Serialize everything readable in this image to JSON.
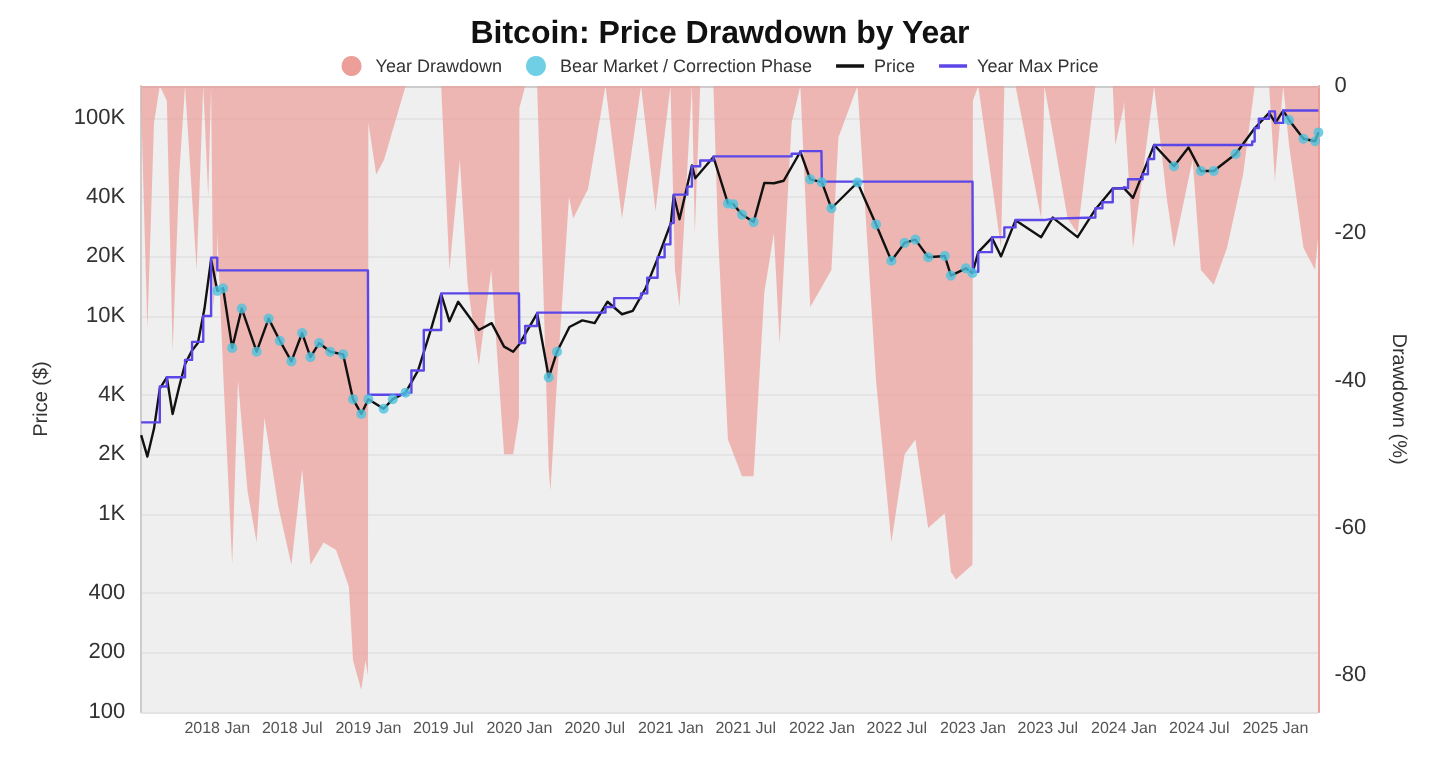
{
  "chart_data": {
    "type": "line",
    "title": "Bitcoin: Price Drawdown by Year",
    "ylabel": "Price ($)",
    "y2label": "Drawdown (%)",
    "log": "y",
    "grid": "y",
    "legend": "top",
    "line_style": "solid",
    "xlim": [
      "2017-07-01",
      "2025-04-15"
    ],
    "xticks": [
      {
        "value": "2018-01",
        "label": "2018 Jan"
      },
      {
        "value": "2018-07",
        "label": "2018 Jul"
      },
      {
        "value": "2019-01",
        "label": "2019 Jan"
      },
      {
        "value": "2019-07",
        "label": "2019 Jul"
      },
      {
        "value": "2020-01",
        "label": "2020 Jan"
      },
      {
        "value": "2020-07",
        "label": "2020 Jul"
      },
      {
        "value": "2021-01",
        "label": "2021 Jan"
      },
      {
        "value": "2021-07",
        "label": "2021 Jul"
      },
      {
        "value": "2022-01",
        "label": "2022 Jan"
      },
      {
        "value": "2022-07",
        "label": "2022 Jul"
      },
      {
        "value": "2023-01",
        "label": "2023 Jan"
      },
      {
        "value": "2023-07",
        "label": "2023 Jul"
      },
      {
        "value": "2024-01",
        "label": "2024 Jan"
      },
      {
        "value": "2024-07",
        "label": "2024 Jul"
      },
      {
        "value": "2025-01",
        "label": "2025 Jan"
      }
    ],
    "ylim": [
      100,
      145000
    ],
    "yticks": [
      100,
      200,
      400,
      {
        "value": 1000,
        "label": "1K"
      },
      {
        "value": 2000,
        "label": "2K"
      },
      {
        "value": 4000,
        "label": "4K"
      },
      {
        "value": 10000,
        "label": "10K"
      },
      {
        "value": 20000,
        "label": "20K"
      },
      {
        "value": 40000,
        "label": "40K"
      },
      {
        "value": 100000,
        "label": "100K"
      }
    ],
    "y2lim": [
      -85,
      0
    ],
    "y2ticks": [
      0,
      -20,
      -40,
      -60,
      -80
    ],
    "series": [
      {
        "name": "Year Drawdown",
        "type": "area",
        "axis": "y2",
        "color": "#ec9e98",
        "x": [
          "2017-07-01",
          "2017-07-16",
          "2017-08-01",
          "2017-08-15",
          "2017-09-01",
          "2017-09-15",
          "2017-10-01",
          "2017-10-15",
          "2017-11-12",
          "2017-11-28",
          "2017-12-10",
          "2017-12-17",
          "2017-12-22",
          "2017-12-31",
          "2018-01-01",
          "2018-01-16",
          "2018-02-06",
          "2018-02-20",
          "2018-03-15",
          "2018-04-06",
          "2018-04-25",
          "2018-05-28",
          "2018-06-29",
          "2018-07-25",
          "2018-08-14",
          "2018-09-15",
          "2018-10-15",
          "2018-11-15",
          "2018-11-25",
          "2018-12-15",
          "2018-12-25",
          "2018-12-31",
          "2019-01-01",
          "2019-01-20",
          "2019-02-08",
          "2019-04-01",
          "2019-05-15",
          "2019-06-26",
          "2019-07-16",
          "2019-08-10",
          "2019-08-29",
          "2019-09-25",
          "2019-10-25",
          "2019-11-25",
          "2019-12-17",
          "2019-12-31",
          "2020-01-01",
          "2020-01-15",
          "2020-02-13",
          "2020-03-12",
          "2020-03-16",
          "2020-04-01",
          "2020-04-30",
          "2020-05-10",
          "2020-06-15",
          "2020-07-27",
          "2020-09-05",
          "2020-10-21",
          "2020-11-25",
          "2020-12-31",
          "2021-01-01",
          "2021-01-11",
          "2021-01-22",
          "2021-02-21",
          "2021-02-28",
          "2021-03-13",
          "2021-04-14",
          "2021-04-25",
          "2021-05-19",
          "2021-06-22",
          "2021-07-20",
          "2021-08-15",
          "2021-09-07",
          "2021-09-21",
          "2021-10-20",
          "2021-11-10",
          "2021-12-04",
          "2022-01-24",
          "2022-02-10",
          "2022-03-28",
          "2022-05-12",
          "2022-06-18",
          "2022-07-20",
          "2022-08-15",
          "2022-09-15",
          "2022-10-25",
          "2022-11-09",
          "2022-11-21",
          "2022-12-31",
          "2023-01-01",
          "2023-01-14",
          "2023-03-10",
          "2023-03-18",
          "2023-04-14",
          "2023-06-15",
          "2023-06-23",
          "2023-08-18",
          "2023-09-11",
          "2023-10-24",
          "2023-12-05",
          "2023-12-11",
          "2023-12-31",
          "2024-01-01",
          "2024-01-23",
          "2024-03-14",
          "2024-04-13",
          "2024-05-01",
          "2024-06-15",
          "2024-07-05",
          "2024-08-05",
          "2024-09-06",
          "2024-10-15",
          "2024-11-12",
          "2024-12-17",
          "2024-12-31",
          "2025-01-01",
          "2025-01-20",
          "2025-02-03",
          "2025-03-10",
          "2025-04-07",
          "2025-04-15"
        ],
        "values": [
          -3,
          -33,
          -5,
          0,
          -2,
          -36,
          -12,
          0,
          -25,
          0,
          -15,
          0,
          -30,
          -25,
          -20,
          -40,
          -65,
          -40,
          -55,
          -62,
          -45,
          -57,
          -65,
          -52,
          -65,
          -62,
          -63,
          -68,
          -78,
          -82,
          -78,
          -80,
          -5,
          -12,
          -10,
          0,
          0,
          0,
          -25,
          -10,
          -27,
          -38,
          -25,
          -50,
          -50,
          -45,
          -3,
          0,
          0,
          -52,
          -55,
          -40,
          -15,
          -18,
          -14,
          0,
          -18,
          0,
          -17,
          0,
          -2,
          -25,
          -30,
          0,
          -20,
          0,
          0,
          -20,
          -48,
          -53,
          -53,
          -28,
          -20,
          -35,
          -5,
          0,
          -30,
          -25,
          -7,
          0,
          -40,
          -62,
          -50,
          -48,
          -60,
          -58,
          -66,
          -67,
          -65,
          -2,
          0,
          -22,
          0,
          0,
          -18,
          0,
          -18,
          -20,
          0,
          0,
          -8,
          -3,
          -2,
          -22,
          0,
          -15,
          -22,
          -10,
          -25,
          -27,
          -22,
          -12,
          0,
          0,
          -13,
          -12,
          0,
          -8,
          -22,
          -25,
          -20
        ]
      },
      {
        "name": "Bear Market / Correction Phase",
        "type": "scatter",
        "color": "#4cc3dd",
        "x": [
          "2018-01-01",
          "2018-01-15",
          "2018-02-06",
          "2018-03-01",
          "2018-04-06",
          "2018-05-05",
          "2018-06-01",
          "2018-06-29",
          "2018-07-25",
          "2018-08-14",
          "2018-09-04",
          "2018-10-01",
          "2018-11-01",
          "2018-11-25",
          "2018-12-15",
          "2019-01-01",
          "2019-02-07",
          "2019-03-01",
          "2019-04-01",
          "2020-03-12",
          "2020-04-01",
          "2021-05-19",
          "2021-06-01",
          "2021-06-22",
          "2021-07-20",
          "2021-12-04",
          "2022-01-01",
          "2022-01-24",
          "2022-03-28",
          "2022-05-12",
          "2022-06-18",
          "2022-07-20",
          "2022-08-15",
          "2022-09-15",
          "2022-10-25",
          "2022-11-09",
          "2022-12-15",
          "2022-12-31",
          "2024-05-01",
          "2024-07-05",
          "2024-08-05",
          "2024-09-27",
          "2025-02-03",
          "2025-03-10",
          "2025-04-07",
          "2025-04-15"
        ],
        "values": [
          13400,
          13800,
          6900,
          10900,
          6600,
          9700,
          7500,
          5900,
          8200,
          6200,
          7300,
          6600,
          6400,
          3800,
          3200,
          3800,
          3400,
          3800,
          4100,
          4900,
          6600,
          37000,
          36700,
          32500,
          29800,
          49000,
          47400,
          35000,
          47200,
          29000,
          19000,
          23400,
          24300,
          19800,
          20100,
          16000,
          17400,
          16500,
          57000,
          54000,
          54000,
          65800,
          97700,
          78500,
          76300,
          84500
        ]
      },
      {
        "name": "Price",
        "color": "#111111",
        "x": [
          "2017-07-01",
          "2017-07-16",
          "2017-08-01",
          "2017-08-15",
          "2017-09-01",
          "2017-09-15",
          "2017-10-01",
          "2017-10-15",
          "2017-11-01",
          "2017-11-15",
          "2017-12-01",
          "2017-12-17",
          "2018-01-01",
          "2018-01-15",
          "2018-02-06",
          "2018-03-01",
          "2018-04-06",
          "2018-05-05",
          "2018-06-01",
          "2018-06-29",
          "2018-07-25",
          "2018-08-14",
          "2018-09-04",
          "2018-10-01",
          "2018-11-01",
          "2018-11-25",
          "2018-12-15",
          "2019-01-01",
          "2019-02-07",
          "2019-03-01",
          "2019-04-01",
          "2019-05-01",
          "2019-06-01",
          "2019-06-26",
          "2019-07-16",
          "2019-08-06",
          "2019-09-25",
          "2019-10-26",
          "2019-11-25",
          "2019-12-17",
          "2020-01-01",
          "2020-02-13",
          "2020-03-12",
          "2020-04-01",
          "2020-05-01",
          "2020-06-01",
          "2020-07-01",
          "2020-08-01",
          "2020-09-05",
          "2020-10-01",
          "2020-11-01",
          "2020-12-01",
          "2021-01-01",
          "2021-01-08",
          "2021-01-22",
          "2021-02-21",
          "2021-03-01",
          "2021-04-14",
          "2021-05-19",
          "2021-06-01",
          "2021-06-22",
          "2021-07-20",
          "2021-08-15",
          "2021-09-07",
          "2021-10-01",
          "2021-11-10",
          "2021-12-04",
          "2022-01-01",
          "2022-01-24",
          "2022-03-28",
          "2022-05-12",
          "2022-06-18",
          "2022-07-20",
          "2022-08-15",
          "2022-09-15",
          "2022-10-25",
          "2022-11-09",
          "2022-12-15",
          "2022-12-31",
          "2023-01-14",
          "2023-02-16",
          "2023-03-10",
          "2023-04-14",
          "2023-06-15",
          "2023-07-13",
          "2023-09-11",
          "2023-10-24",
          "2023-12-05",
          "2024-01-01",
          "2024-01-23",
          "2024-03-14",
          "2024-05-01",
          "2024-06-05",
          "2024-07-05",
          "2024-08-05",
          "2024-09-27",
          "2024-11-12",
          "2024-12-17",
          "2025-01-01",
          "2025-01-20",
          "2025-02-03",
          "2025-03-10",
          "2025-04-07",
          "2025-04-15"
        ],
        "values": [
          2500,
          1950,
          2700,
          4300,
          4900,
          3200,
          4400,
          5700,
          6700,
          7300,
          10900,
          19300,
          13400,
          13800,
          6900,
          10900,
          6600,
          9700,
          7500,
          5900,
          8200,
          6200,
          7300,
          6600,
          6400,
          3800,
          3200,
          3800,
          3400,
          3800,
          4100,
          5300,
          8500,
          12900,
          9400,
          11800,
          8500,
          9200,
          7000,
          6600,
          7200,
          10300,
          4900,
          6600,
          8800,
          9500,
          9200,
          11800,
          10200,
          10600,
          13800,
          19700,
          29400,
          40700,
          30800,
          57500,
          49600,
          63500,
          37000,
          36700,
          32500,
          29800,
          47000,
          46800,
          48200,
          67500,
          49000,
          47400,
          35000,
          47200,
          29000,
          19000,
          23400,
          24300,
          19800,
          20100,
          16000,
          17400,
          16500,
          21000,
          24800,
          20000,
          30400,
          25000,
          31400,
          25000,
          34500,
          44000,
          44200,
          39500,
          73100,
          57000,
          71000,
          54000,
          54000,
          65800,
          88700,
          106100,
          94400,
          109000,
          97700,
          78500,
          76300,
          84500
        ]
      },
      {
        "name": "Year Max Price",
        "type": "step",
        "color": "#5b46e8",
        "x": [
          "2017-07-01",
          "2017-08-15",
          "2017-09-01",
          "2017-10-15",
          "2017-11-01",
          "2017-11-28",
          "2017-12-17",
          "2018-01-01",
          "2018-12-31",
          "2019-01-01",
          "2019-04-01",
          "2019-04-15",
          "2019-05-15",
          "2019-06-26",
          "2019-12-31",
          "2020-01-01",
          "2020-01-15",
          "2020-02-13",
          "2020-07-27",
          "2020-08-17",
          "2020-10-21",
          "2020-11-05",
          "2020-11-30",
          "2020-12-17",
          "2020-12-31",
          "2021-01-01",
          "2021-01-08",
          "2021-02-10",
          "2021-02-21",
          "2021-03-13",
          "2021-04-14",
          "2021-10-20",
          "2021-11-10",
          "2021-12-31",
          "2022-01-01",
          "2022-12-31",
          "2023-01-01",
          "2023-01-14",
          "2023-02-16",
          "2023-03-18",
          "2023-04-14",
          "2023-06-23",
          "2023-07-13",
          "2023-10-24",
          "2023-11-10",
          "2023-12-05",
          "2023-12-31",
          "2024-01-01",
          "2024-01-11",
          "2024-02-15",
          "2024-02-28",
          "2024-03-14",
          "2024-11-06",
          "2024-11-12",
          "2024-11-22",
          "2024-12-17",
          "2024-12-31",
          "2025-01-01",
          "2025-01-20",
          "2025-04-15"
        ],
        "values": [
          2900,
          4400,
          4900,
          6000,
          7400,
          10000,
          19700,
          17000,
          17000,
          4000,
          4100,
          5300,
          8500,
          13000,
          13000,
          7300,
          8900,
          10400,
          11100,
          12300,
          13000,
          15600,
          19800,
          23000,
          29300,
          29500,
          41000,
          45000,
          57000,
          61000,
          64000,
          66000,
          68000,
          68000,
          47700,
          47700,
          16700,
          21000,
          25000,
          28000,
          30500,
          31000,
          31400,
          35000,
          37500,
          44000,
          44700,
          44200,
          49000,
          52000,
          62000,
          73000,
          76000,
          89000,
          99000,
          108000,
          108000,
          94400,
          109000,
          109000
        ]
      }
    ]
  }
}
